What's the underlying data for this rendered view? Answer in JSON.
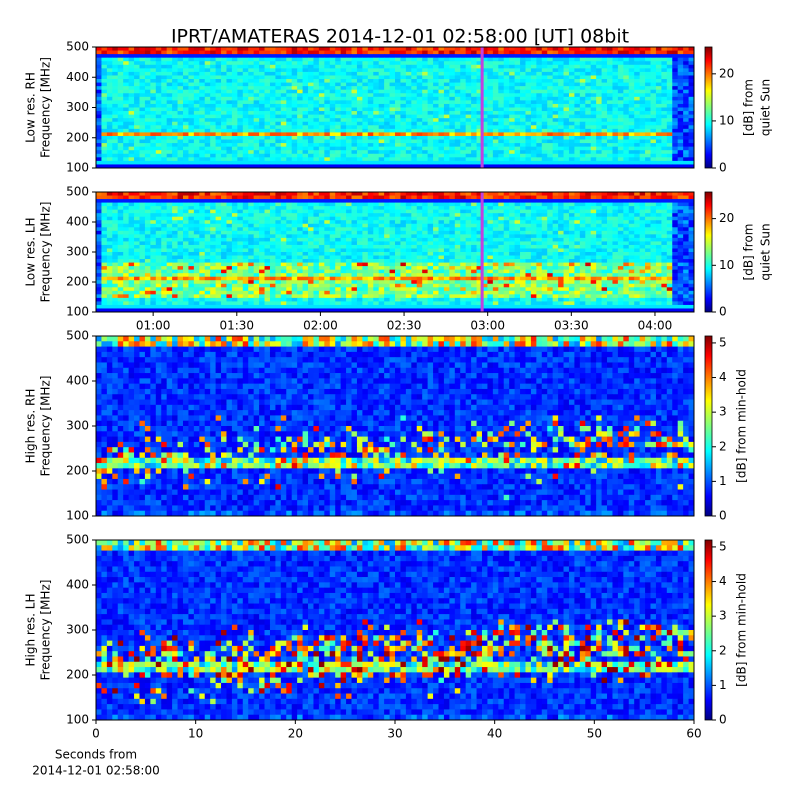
{
  "chart_data": [
    {
      "type": "spectrogram",
      "title": "IPRT/AMATERAS 2014-12-01 02:58:00 [UT]   08bit",
      "mode": "low-rh",
      "ylabel": [
        "Low res. RH",
        "Frequency [MHz]"
      ],
      "ylim": [
        100,
        500
      ],
      "yticks": [
        100,
        200,
        300,
        400,
        500
      ],
      "xlim": [
        39.5,
        254
      ],
      "cursor_x": 178,
      "cursor_color": "#c040e0",
      "colorbar": {
        "label": [
          "[dB] from",
          "quiet Sun"
        ],
        "lim": [
          0,
          25.7
        ],
        "ticks": [
          0,
          10,
          20
        ]
      }
    },
    {
      "type": "spectrogram",
      "mode": "low-lh",
      "ylabel": [
        "Low res. LH",
        "Frequency [MHz]"
      ],
      "ylim": [
        100,
        500
      ],
      "yticks": [
        100,
        200,
        300,
        400,
        500
      ],
      "xlim": [
        39.5,
        254
      ],
      "cursor_x": 178,
      "cursor_color": "#c040e0",
      "xticks": [
        {
          "value": 60,
          "label": "01:00"
        },
        {
          "value": 90,
          "label": "01:30"
        },
        {
          "value": 120,
          "label": "02:00"
        },
        {
          "value": 150,
          "label": "02:30"
        },
        {
          "value": 180,
          "label": "03:00"
        },
        {
          "value": 210,
          "label": "03:30"
        },
        {
          "value": 240,
          "label": "04:00"
        }
      ],
      "colorbar": {
        "label": [
          "[dB] from",
          "quiet Sun"
        ],
        "lim": [
          0,
          25.7
        ],
        "ticks": [
          0,
          10,
          20
        ]
      }
    },
    {
      "type": "spectrogram",
      "mode": "high-rh",
      "ylabel": [
        "High res. RH",
        "Frequency [MHz]"
      ],
      "ylim": [
        100,
        500
      ],
      "yticks": [
        100,
        200,
        300,
        400,
        500
      ],
      "xlim": [
        0,
        60
      ],
      "colorbar": {
        "label": [
          "[dB] from min-hold"
        ],
        "lim": [
          0,
          5.2
        ],
        "ticks": [
          0,
          1,
          2,
          3,
          4,
          5
        ]
      }
    },
    {
      "type": "spectrogram",
      "mode": "high-lh",
      "ylabel": [
        "High res. LH",
        "Frequency [MHz]"
      ],
      "ylim": [
        100,
        500
      ],
      "yticks": [
        100,
        200,
        300,
        400,
        500
      ],
      "xlim": [
        0,
        60
      ],
      "xticks": [
        0,
        10,
        20,
        30,
        40,
        50,
        60
      ],
      "xlabel": [
        "Seconds from",
        "2014-12-01 02:58:00"
      ],
      "colorbar": {
        "label": [
          "[dB] from min-hold"
        ],
        "lim": [
          0,
          5.2
        ],
        "ticks": [
          0,
          1,
          2,
          3,
          4,
          5
        ]
      }
    }
  ]
}
